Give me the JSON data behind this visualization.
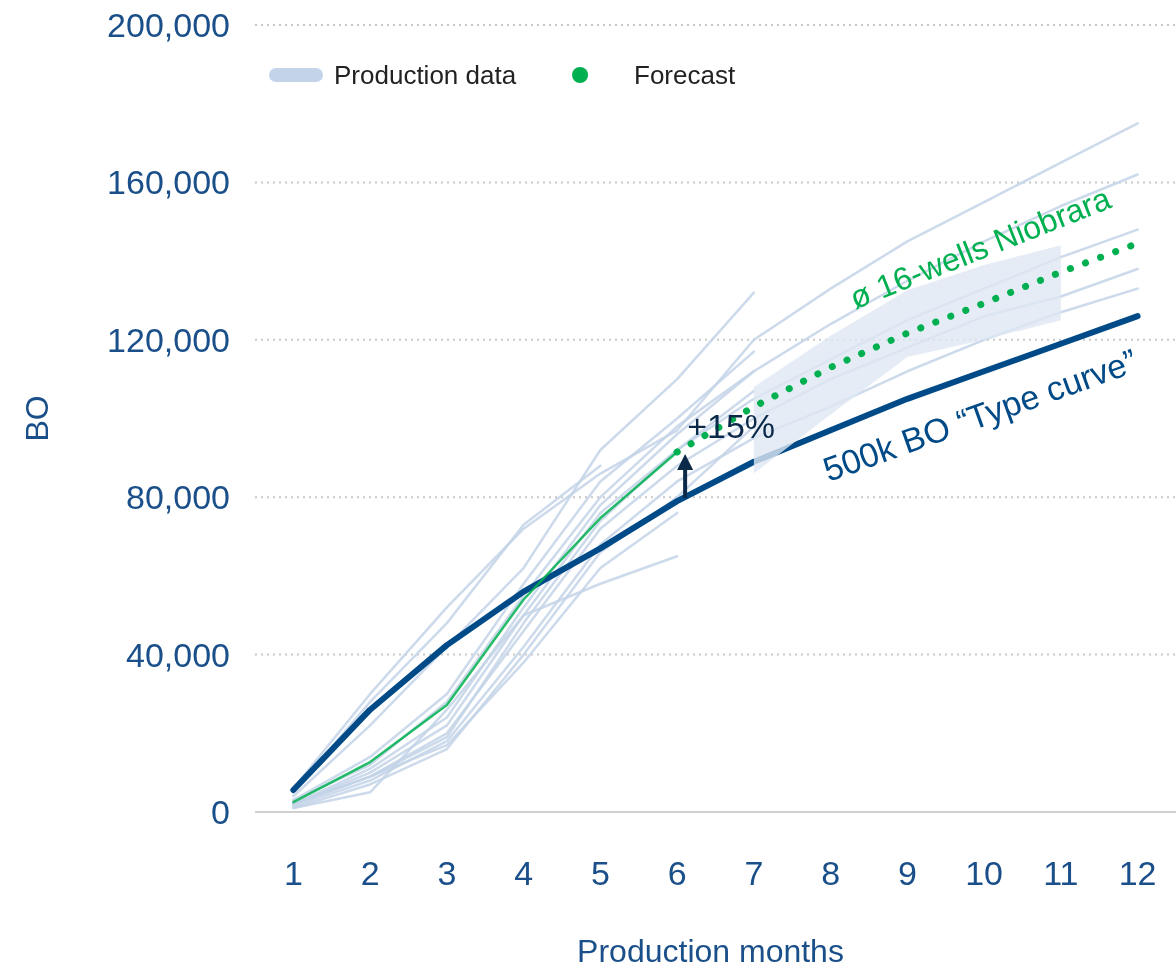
{
  "chart_data": {
    "type": "line",
    "xlabel": "Production months",
    "ylabel": "BO",
    "x": [
      1,
      2,
      3,
      4,
      5,
      6,
      7,
      8,
      9,
      10,
      11,
      12
    ],
    "xlim": [
      0.5,
      12.5
    ],
    "xticks": [
      1,
      2,
      3,
      4,
      5,
      6,
      7,
      8,
      9,
      10,
      11,
      12
    ],
    "ylim": [
      0,
      200000
    ],
    "yticks": [
      {
        "value": 0,
        "label": "0"
      },
      {
        "value": 40000,
        "label": "40,000"
      },
      {
        "value": 80000,
        "label": "80,000"
      },
      {
        "value": 120000,
        "label": "120,000"
      },
      {
        "value": 160000,
        "label": "160,000"
      },
      {
        "value": 200000,
        "label": "200,000"
      }
    ],
    "grid": "y",
    "legend": "top left",
    "marker": "none",
    "series": [
      {
        "name": "Production data",
        "color": "#c3d3e8",
        "values": [
          6000,
          30000,
          52000,
          72000,
          86000,
          97000,
          120000,
          133000,
          145000,
          155000,
          165000,
          175000
        ]
      },
      {
        "color": "#c3d3e8",
        "values": [
          3000,
          12000,
          28000,
          55000,
          80000,
          98000,
          112000,
          124000,
          135000,
          145000,
          154000,
          162000
        ]
      },
      {
        "color": "#c3d3e8",
        "values": [
          2000,
          10000,
          22000,
          50000,
          76000,
          92000,
          105000,
          115000,
          125000,
          133000,
          141000,
          148000
        ]
      },
      {
        "color": "#c3d3e8",
        "values": [
          2000,
          9000,
          20000,
          46000,
          72000,
          88000,
          100000,
          110000,
          118000,
          126000,
          131000,
          138000
        ]
      },
      {
        "color": "#c3d3e8",
        "values": [
          1500,
          8000,
          18000,
          42000,
          68000,
          84000,
          95000,
          103000,
          112000,
          120000,
          127000,
          133000
        ]
      },
      {
        "color": "#c3d3e8",
        "values": [
          4000,
          22000,
          42000,
          62000,
          92000,
          110000,
          132000,
          null,
          null,
          null,
          null,
          null
        ]
      },
      {
        "color": "#c3d3e8",
        "values": [
          3000,
          14000,
          30000,
          58000,
          84000,
          100000,
          117000,
          null,
          null,
          null,
          null,
          null
        ]
      },
      {
        "color": "#c3d3e8",
        "values": [
          2000,
          11000,
          24000,
          52000,
          78000,
          96000,
          112000,
          null,
          null,
          null,
          null,
          null
        ]
      },
      {
        "color": "#c3d3e8",
        "values": [
          2000,
          9000,
          19000,
          48000,
          74000,
          92000,
          107000,
          null,
          null,
          null,
          null,
          null
        ]
      },
      {
        "color": "#c3d3e8",
        "values": [
          1000,
          7000,
          16000,
          40000,
          66000,
          80000,
          98000,
          null,
          null,
          null,
          null,
          null
        ]
      },
      {
        "color": "#c3d3e8",
        "values": [
          1000,
          5000,
          26000,
          50000,
          58000,
          65000,
          null,
          null,
          null,
          null,
          null,
          null
        ]
      },
      {
        "color": "#c3d3e8",
        "values": [
          5000,
          28000,
          48000,
          73000,
          88000,
          null,
          null,
          null,
          null,
          null,
          null,
          null
        ]
      },
      {
        "color": "#c3d3e8",
        "values": [
          2000,
          9000,
          17000,
          38000,
          62000,
          76000,
          null,
          null,
          null,
          null,
          null,
          null
        ]
      },
      {
        "name": "500k BO “Type curve”",
        "color": "#004b87",
        "values": [
          5600,
          26000,
          42400,
          56000,
          67000,
          79000,
          89000,
          97000,
          105000,
          112000,
          119000,
          126000
        ]
      },
      {
        "color": "#00b050",
        "values": [
          2500,
          12700,
          27200,
          54000,
          74700,
          91500,
          null,
          null,
          null,
          null,
          null,
          null
        ]
      },
      {
        "name": "Forecast",
        "color": "#00b050",
        "line_style": "dotted",
        "values": [
          null,
          null,
          null,
          null,
          null,
          91500,
          103000,
          113000,
          121700,
          129300,
          137200,
          144500
        ],
        "lower": [
          null,
          null,
          null,
          null,
          null,
          null,
          86000,
          101000,
          115600,
          120000,
          125000,
          null
        ],
        "upper": [
          null,
          null,
          null,
          null,
          null,
          null,
          108000,
          121000,
          132600,
          139000,
          144000,
          null
        ]
      }
    ],
    "annotations": [
      {
        "text": "+15%",
        "x": 6,
        "y": 91500
      },
      {
        "text": "ø 16-wells Niobrara",
        "x": 10,
        "y": 129300
      }
    ]
  }
}
